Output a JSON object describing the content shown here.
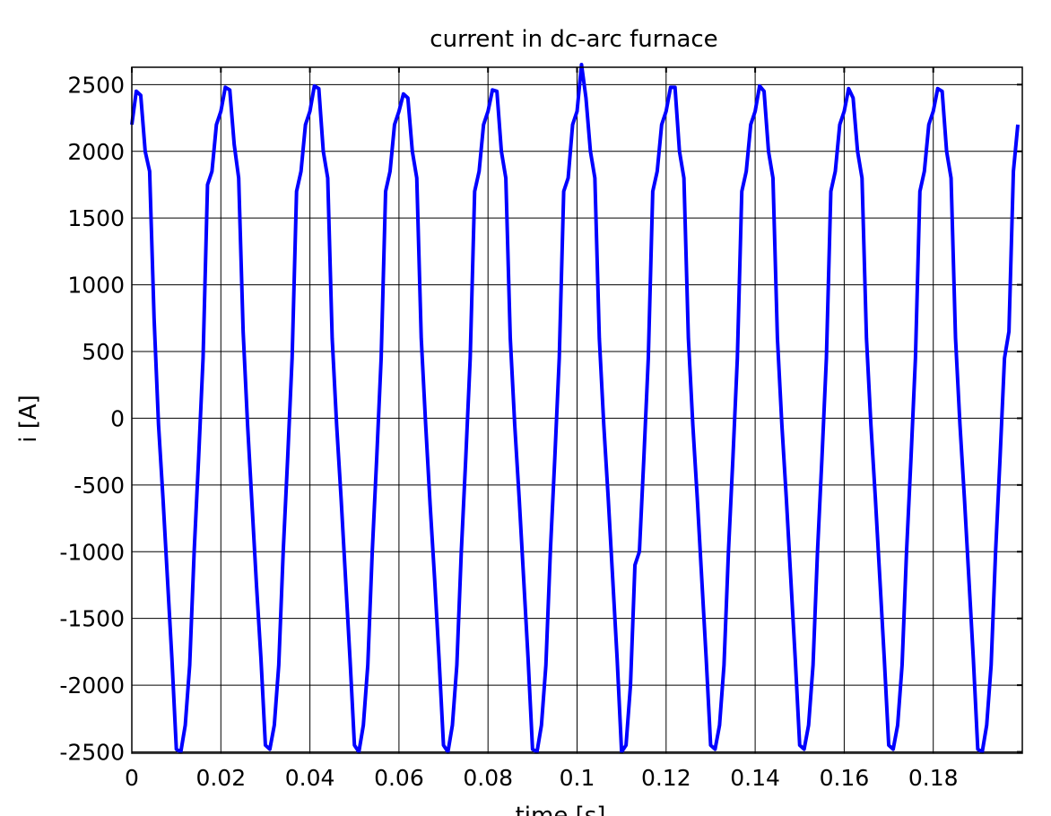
{
  "chart_data": {
    "type": "line",
    "title": "current in dc-arc furnace",
    "xlabel": "time [s]",
    "ylabel": "i [A]",
    "x": [
      0,
      0.001,
      0.002,
      0.003,
      0.004,
      0.005,
      0.006,
      0.007,
      0.008,
      0.009,
      0.01,
      0.011,
      0.012,
      0.013,
      0.014,
      0.015,
      0.016,
      0.017,
      0.018,
      0.019,
      0.02,
      0.021,
      0.022,
      0.023,
      0.024,
      0.025,
      0.026,
      0.027,
      0.028,
      0.029,
      0.03,
      0.031,
      0.032,
      0.033,
      0.034,
      0.035,
      0.036,
      0.037,
      0.038,
      0.039,
      0.04,
      0.041,
      0.042,
      0.043,
      0.044,
      0.045,
      0.046,
      0.047,
      0.048,
      0.049,
      0.05,
      0.051,
      0.052,
      0.053,
      0.054,
      0.055,
      0.056,
      0.057,
      0.058,
      0.059,
      0.06,
      0.061,
      0.062,
      0.063,
      0.064,
      0.065,
      0.066,
      0.067,
      0.068,
      0.069,
      0.07,
      0.071,
      0.072,
      0.073,
      0.074,
      0.075,
      0.076,
      0.077,
      0.078,
      0.079,
      0.08,
      0.081,
      0.082,
      0.083,
      0.084,
      0.085,
      0.086,
      0.087,
      0.088,
      0.089,
      0.09,
      0.091,
      0.092,
      0.093,
      0.094,
      0.095,
      0.096,
      0.097,
      0.098,
      0.099,
      0.1,
      0.101,
      0.102,
      0.103,
      0.104,
      0.105,
      0.106,
      0.107,
      0.108,
      0.109,
      0.11,
      0.111,
      0.112,
      0.113,
      0.114,
      0.115,
      0.116,
      0.117,
      0.118,
      0.119,
      0.12,
      0.121,
      0.122,
      0.123,
      0.124,
      0.125,
      0.126,
      0.127,
      0.128,
      0.129,
      0.13,
      0.131,
      0.132,
      0.133,
      0.134,
      0.135,
      0.136,
      0.137,
      0.138,
      0.139,
      0.14,
      0.141,
      0.142,
      0.143,
      0.144,
      0.145,
      0.146,
      0.147,
      0.148,
      0.149,
      0.15,
      0.151,
      0.152,
      0.153,
      0.154,
      0.155,
      0.156,
      0.157,
      0.158,
      0.159,
      0.16,
      0.161,
      0.162,
      0.163,
      0.164,
      0.165,
      0.166,
      0.167,
      0.168,
      0.169,
      0.17,
      0.171,
      0.172,
      0.173,
      0.174,
      0.175,
      0.176,
      0.177,
      0.178,
      0.179,
      0.18,
      0.181,
      0.182,
      0.183,
      0.184,
      0.185,
      0.186,
      0.187,
      0.188,
      0.189,
      0.19,
      0.191,
      0.192,
      0.193,
      0.194,
      0.195,
      0.196,
      0.197,
      0.198,
      0.199
    ],
    "series": [
      {
        "color": "#0000ff",
        "values": [
          2200,
          2450,
          2420,
          2000,
          1850,
          750,
          -50,
          -600,
          -1200,
          -1800,
          -2480,
          -2500,
          -2300,
          -1850,
          -1000,
          -300,
          450,
          1750,
          1850,
          2200,
          2300,
          2480,
          2460,
          2050,
          1800,
          650,
          -50,
          -650,
          -1250,
          -1800,
          -2450,
          -2480,
          -2300,
          -1850,
          -1000,
          -300,
          450,
          1700,
          1850,
          2200,
          2300,
          2490,
          2470,
          2000,
          1800,
          600,
          -50,
          -600,
          -1200,
          -1800,
          -2450,
          -2500,
          -2300,
          -1850,
          -1000,
          -300,
          450,
          1700,
          1850,
          2200,
          2300,
          2430,
          2400,
          2000,
          1800,
          600,
          -50,
          -650,
          -1200,
          -1800,
          -2450,
          -2500,
          -2300,
          -1850,
          -1000,
          -300,
          450,
          1700,
          1850,
          2200,
          2300,
          2460,
          2450,
          2000,
          1800,
          600,
          -50,
          -600,
          -1200,
          -1800,
          -2480,
          -2500,
          -2300,
          -1850,
          -1000,
          -300,
          450,
          1700,
          1800,
          2200,
          2300,
          2650,
          2400,
          2000,
          1800,
          600,
          -50,
          -600,
          -1200,
          -1800,
          -2500,
          -2450,
          -2000,
          -1100,
          -1000,
          -300,
          450,
          1700,
          1850,
          2200,
          2300,
          2480,
          2480,
          2000,
          1800,
          600,
          -50,
          -600,
          -1200,
          -1800,
          -2450,
          -2480,
          -2300,
          -1850,
          -1000,
          -300,
          450,
          1700,
          1850,
          2200,
          2300,
          2490,
          2450,
          2000,
          1800,
          600,
          -50,
          -600,
          -1200,
          -1800,
          -2450,
          -2480,
          -2300,
          -1850,
          -1000,
          -300,
          450,
          1700,
          1850,
          2200,
          2300,
          2470,
          2400,
          2000,
          1800,
          600,
          -50,
          -600,
          -1200,
          -1800,
          -2450,
          -2480,
          -2300,
          -1850,
          -1000,
          -300,
          450,
          1700,
          1850,
          2200,
          2300,
          2470,
          2450,
          2000,
          1800,
          600,
          -50,
          -600,
          -1200,
          -1800,
          -2480,
          -2500,
          -2300,
          -1850,
          -1000,
          -300,
          450,
          650,
          1850,
          2200
        ]
      }
    ],
    "xlim": [
      0,
      0.2
    ],
    "ylim": [
      -2510,
      2630
    ],
    "xticks": [
      0,
      0.02,
      0.04,
      0.06,
      0.08,
      0.1,
      0.12,
      0.14,
      0.16,
      0.18
    ],
    "yticks": [
      -2500,
      -2000,
      -1500,
      -1000,
      -500,
      0,
      500,
      1000,
      1500,
      2000,
      2500
    ],
    "grid": true
  }
}
